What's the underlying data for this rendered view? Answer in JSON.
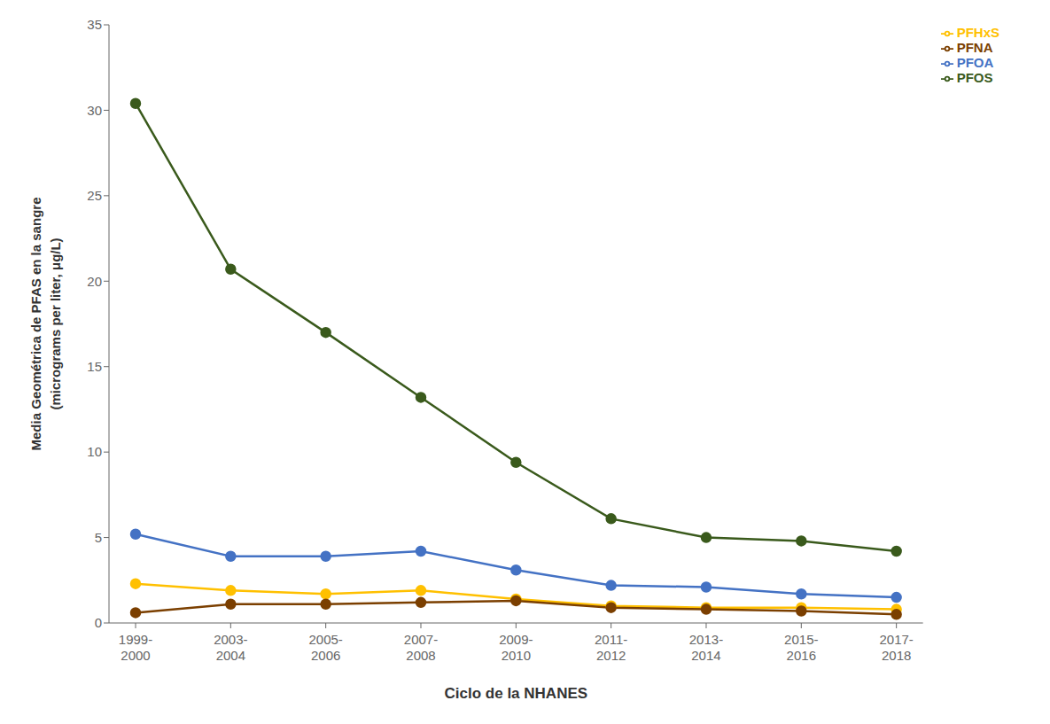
{
  "chart_data": {
    "type": "line",
    "categories": [
      "1999-\n2000",
      "2003-\n2004",
      "2005-\n2006",
      "2007-\n2008",
      "2009-\n2010",
      "2011-\n2012",
      "2013-\n2014",
      "2015-\n2016",
      "2017-\n2018"
    ],
    "series": [
      {
        "name": "PFOS",
        "color": "#3a5a1c",
        "values": [
          30.4,
          20.7,
          17.0,
          13.2,
          9.4,
          6.1,
          5.0,
          4.8,
          4.2
        ]
      },
      {
        "name": "PFOA",
        "color": "#4472c4",
        "values": [
          5.2,
          3.9,
          3.9,
          4.2,
          3.1,
          2.2,
          2.1,
          1.7,
          1.5
        ]
      },
      {
        "name": "PFHxS",
        "color": "#ffc000",
        "values": [
          2.3,
          1.9,
          1.7,
          1.9,
          1.4,
          1.0,
          0.9,
          0.9,
          0.8
        ]
      },
      {
        "name": "PFNA",
        "color": "#7b3f00",
        "values": [
          0.6,
          1.1,
          1.1,
          1.2,
          1.3,
          0.9,
          0.8,
          0.7,
          0.5
        ]
      }
    ],
    "ylabel": "Media Geométrica de PFAS en la sangre\n(micrograms per liter, μg/L)",
    "xlabel": "Ciclo de la NHANES",
    "ylim": [
      0,
      35
    ],
    "yticks": [
      0,
      5,
      10,
      15,
      20,
      25,
      30,
      35
    ],
    "grid": false,
    "legend": "upper right",
    "marker": "circle"
  }
}
